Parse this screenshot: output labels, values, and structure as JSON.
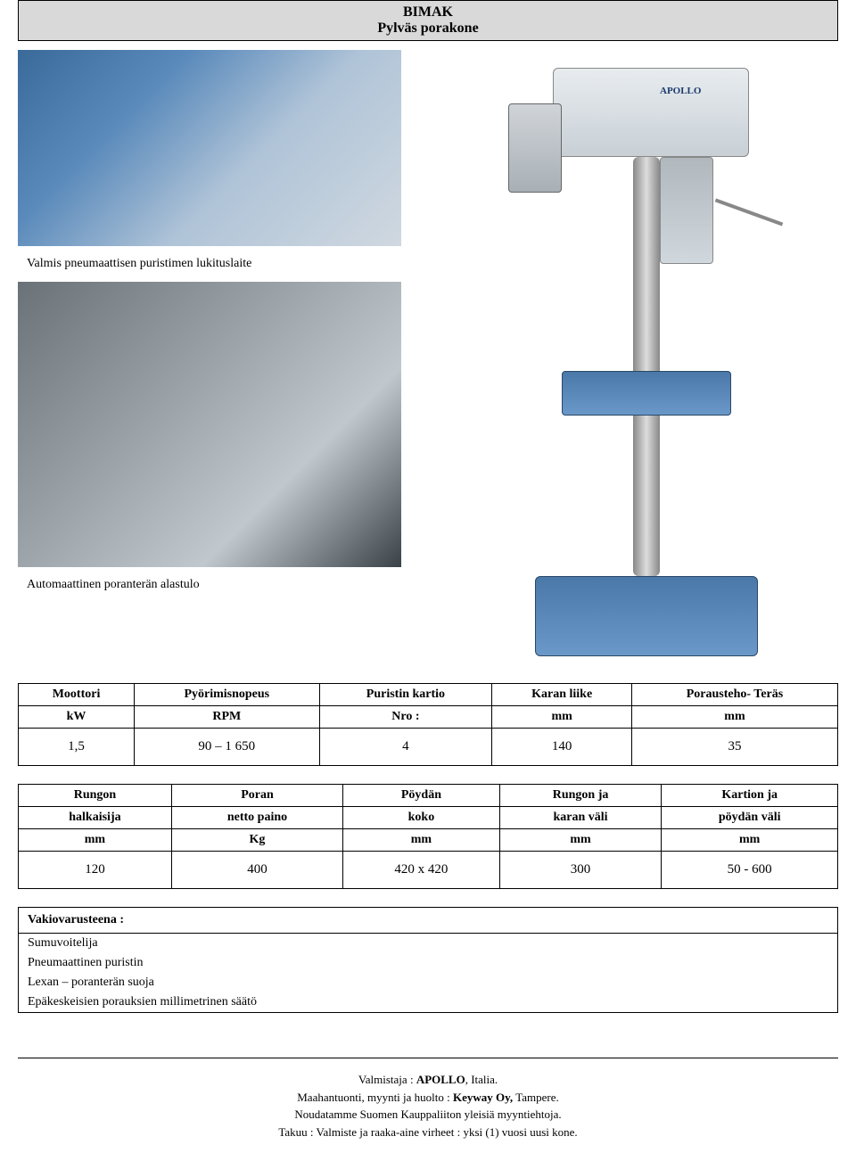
{
  "header": {
    "line1": "BIMAK",
    "line2": "Pylväs porakone"
  },
  "captions": {
    "c1": "Valmis pneumaattisen puristimen lukituslaite",
    "c2": "Automaattinen poranterän alastulo"
  },
  "drill_logo": "APOLLO",
  "table1": {
    "headers": [
      "Moottori",
      "Pyörimisnopeus",
      "Puristin kartio",
      "Karan liike",
      "Porausteho- Teräs"
    ],
    "units": [
      "kW",
      "RPM",
      "Nro :",
      "mm",
      "mm"
    ],
    "data": [
      "1,5",
      "90 – 1 650",
      "4",
      "140",
      "35"
    ]
  },
  "table2": {
    "headers_l1": [
      "Rungon",
      "Poran",
      "Pöydän",
      "Rungon ja",
      "Kartion ja"
    ],
    "headers_l2": [
      "halkaisija",
      "netto paino",
      "koko",
      "karan väli",
      "pöydän väli"
    ],
    "units": [
      "mm",
      "Kg",
      "mm",
      "mm",
      "mm"
    ],
    "data": [
      "120",
      "400",
      "420 x 420",
      "300",
      "50 - 600"
    ]
  },
  "equipment": {
    "title": "Vakiovarusteena :",
    "items": [
      "Sumuvoitelija",
      "Pneumaattinen puristin",
      "Lexan – poranterän suoja",
      "Epäkeskeisien porauksien millimetrinen säätö"
    ]
  },
  "footer": {
    "l1_a": "Valmistaja : ",
    "l1_b": "APOLLO",
    "l1_c": ", Italia.",
    "l2_a": "Maahantuonti, myynti ja huolto : ",
    "l2_b": "Keyway Oy,",
    "l2_c": " Tampere.",
    "l3": "Noudatamme Suomen Kauppaliiton yleisiä myyntiehtoja.",
    "l4": "Takuu : Valmiste ja raaka-aine virheet : yksi (1) vuosi uusi kone."
  },
  "colors": {
    "header_bg": "#d9d9d9",
    "border": "#000000",
    "machine_blue": "#5a88b8",
    "machine_grey": "#c8d0d6"
  }
}
